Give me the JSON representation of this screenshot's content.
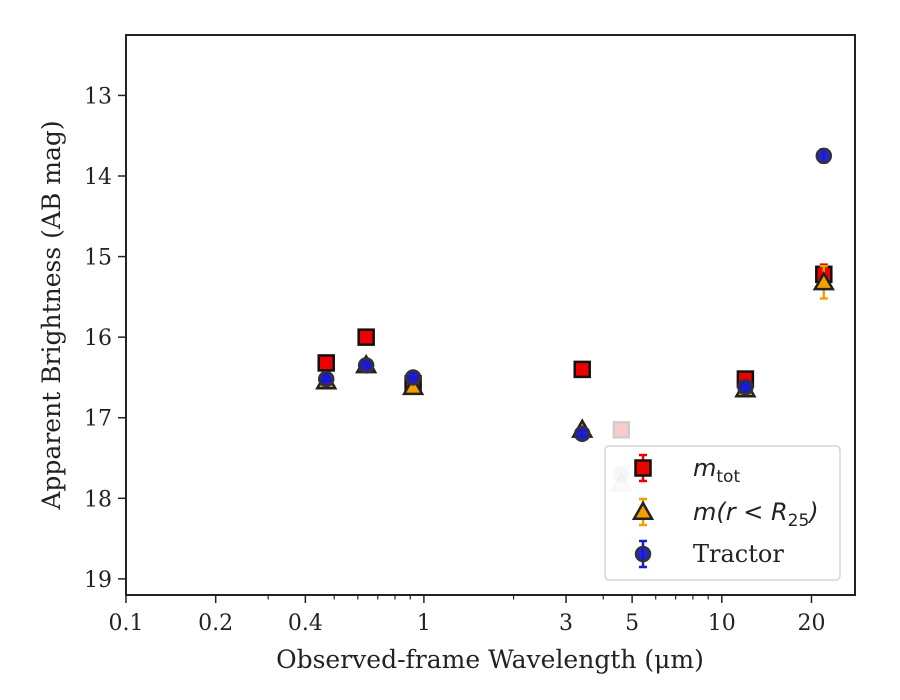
{
  "chart_data": {
    "type": "scatter",
    "xlabel": "Observed-frame Wavelength (μm)",
    "ylabel": "Apparent Brightness (AB mag)",
    "xscale": "log",
    "xlim": [
      0.1,
      28
    ],
    "ylim": [
      19.2,
      12.25
    ],
    "y_inverted": true,
    "x_ticks": [
      0.1,
      0.2,
      0.4,
      1,
      3,
      5,
      10,
      20
    ],
    "x_tick_labels": [
      "0.1",
      "0.2",
      "0.4",
      "1",
      "3",
      "5",
      "10",
      "20"
    ],
    "y_ticks": [
      13,
      14,
      15,
      16,
      17,
      18,
      19
    ],
    "y_tick_labels": [
      "13",
      "14",
      "15",
      "16",
      "17",
      "18",
      "19"
    ],
    "grid": false,
    "legend_position": "bottom-right",
    "series": [
      {
        "name": "m_tot",
        "legend_main": "m",
        "legend_sub": "tot",
        "marker": "square",
        "color": "#ee0000",
        "edge": "#111111",
        "errcolor": "#ee0000",
        "x": [
          0.47,
          0.64,
          0.92,
          3.4,
          4.6,
          12,
          22
        ],
        "y": [
          16.32,
          16.0,
          16.58,
          16.4,
          17.15,
          16.52,
          15.22
        ],
        "yerr": [
          0.03,
          0.03,
          0.05,
          0.03,
          0.04,
          0.05,
          0.12
        ]
      },
      {
        "name": "m(r < R25)",
        "legend_main": "m(r < R",
        "legend_sub": "25",
        "legend_tail": ")",
        "marker": "triangle",
        "color": "#f0a000",
        "edge": "#222222",
        "errcolor": "#f0a000",
        "x": [
          0.47,
          0.64,
          0.92,
          3.4,
          4.6,
          12,
          22
        ],
        "y": [
          16.55,
          16.35,
          16.62,
          17.15,
          17.82,
          16.65,
          15.32
        ],
        "yerr": [
          0.03,
          0.03,
          0.05,
          0.04,
          0.06,
          0.07,
          0.2
        ]
      },
      {
        "name": "Tractor",
        "marker": "circle",
        "color": "#1a1acc",
        "edge": "#333333",
        "errcolor": "#1a1acc",
        "x": [
          0.47,
          0.64,
          0.92,
          3.4,
          4.6,
          12,
          22
        ],
        "y": [
          16.52,
          16.35,
          16.5,
          17.2,
          17.7,
          16.62,
          13.75
        ],
        "yerr": [
          0.03,
          0.03,
          0.06,
          0.04,
          0.06,
          0.05,
          0.08
        ]
      }
    ]
  }
}
